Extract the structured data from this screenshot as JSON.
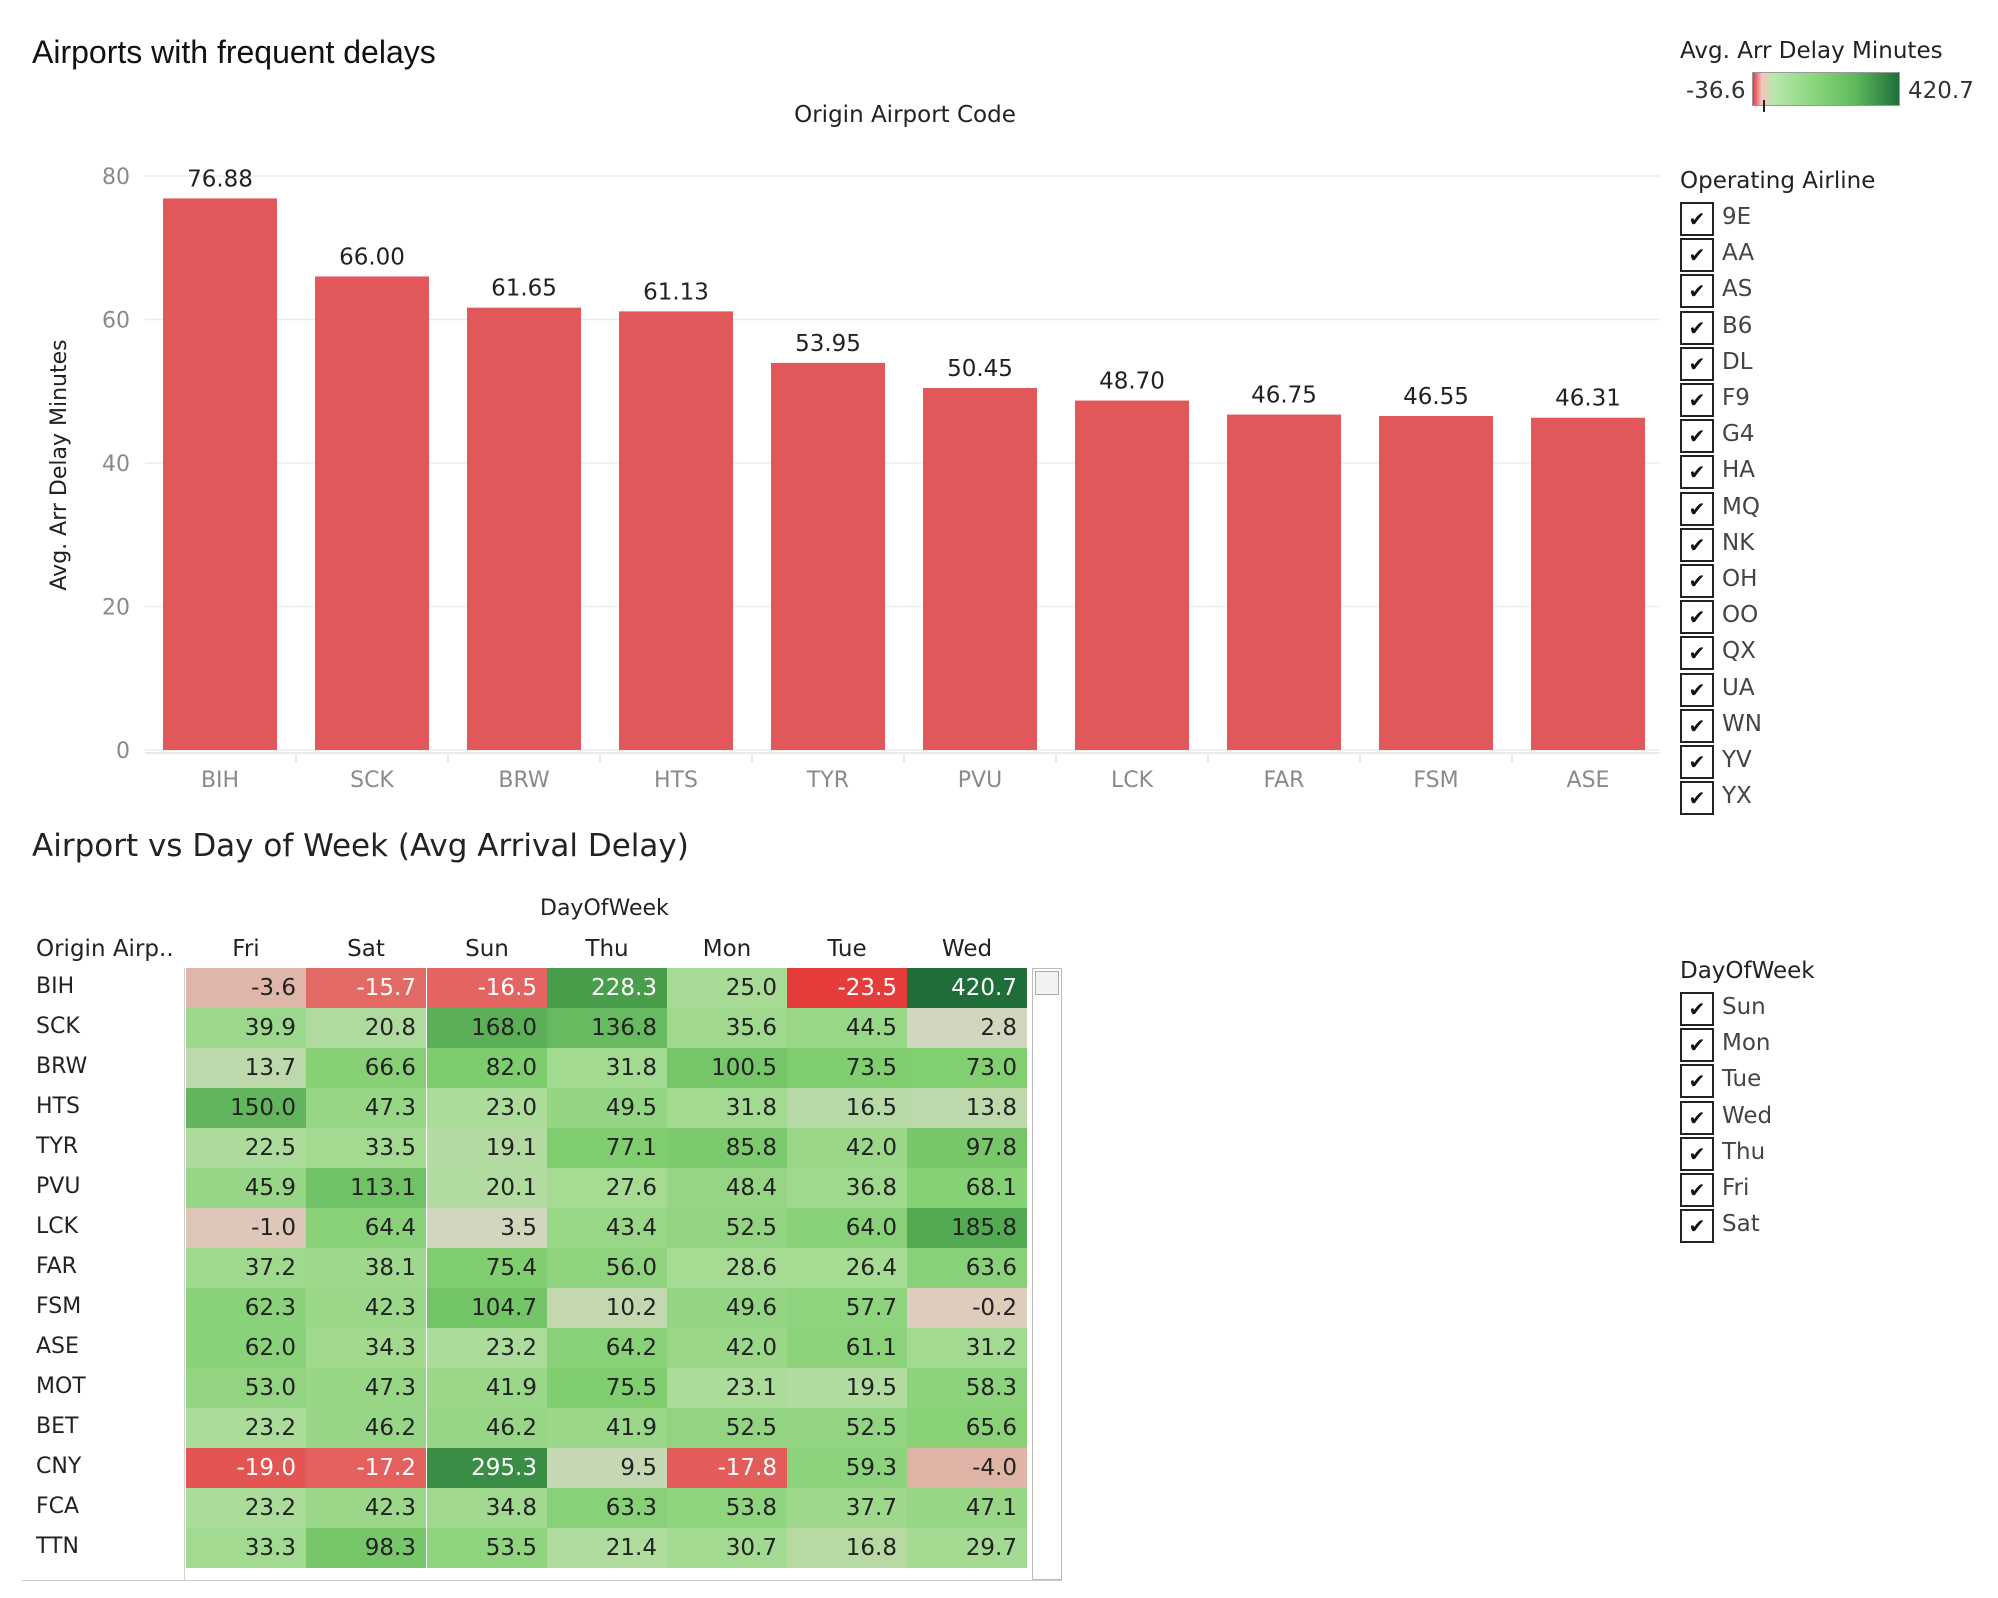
{
  "title": "Airports with frequent delays",
  "colors": {
    "bar": "#e1575a",
    "grid": "#ececec",
    "axis_text": "#8a8a8a"
  },
  "chart_data": [
    {
      "type": "bar",
      "title": "Airports with frequent delays",
      "top_axis_title": "Origin Airport Code",
      "ylabel": "Avg. Arr Delay Minutes",
      "xlabel": "",
      "ylim": [
        0,
        80
      ],
      "yticks": [
        0,
        20,
        40,
        60,
        80
      ],
      "grid": true,
      "categories": [
        "BIH",
        "SCK",
        "BRW",
        "HTS",
        "TYR",
        "PVU",
        "LCK",
        "FAR",
        "FSM",
        "ASE"
      ],
      "values": [
        76.88,
        66.0,
        61.65,
        61.13,
        53.95,
        50.45,
        48.7,
        46.75,
        46.55,
        46.31
      ],
      "value_labels": [
        "76.88",
        "66.00",
        "61.65",
        "61.13",
        "53.95",
        "50.45",
        "48.70",
        "46.75",
        "46.55",
        "46.31"
      ]
    },
    {
      "type": "heatmap",
      "title": "Airport vs Day of Week (Avg Arrival Delay)",
      "column_axis_title": "DayOfWeek",
      "row_header": "Origin Airp..",
      "columns": [
        "Fri",
        "Sat",
        "Sun",
        "Thu",
        "Mon",
        "Tue",
        "Wed"
      ],
      "rows": [
        "BIH",
        "SCK",
        "BRW",
        "HTS",
        "TYR",
        "PVU",
        "LCK",
        "FAR",
        "FSM",
        "ASE",
        "MOT",
        "BET",
        "CNY",
        "FCA",
        "TTN"
      ],
      "values": [
        [
          -3.6,
          -15.7,
          -16.5,
          228.3,
          25.0,
          -23.5,
          420.7
        ],
        [
          39.9,
          20.8,
          168.0,
          136.8,
          35.6,
          44.5,
          2.8
        ],
        [
          13.7,
          66.6,
          82.0,
          31.8,
          100.5,
          73.5,
          73.0
        ],
        [
          150.0,
          47.3,
          23.0,
          49.5,
          31.8,
          16.5,
          13.8
        ],
        [
          22.5,
          33.5,
          19.1,
          77.1,
          85.8,
          42.0,
          97.8
        ],
        [
          45.9,
          113.1,
          20.1,
          27.6,
          48.4,
          36.8,
          68.1
        ],
        [
          -1.0,
          64.4,
          3.5,
          43.4,
          52.5,
          64.0,
          185.8
        ],
        [
          37.2,
          38.1,
          75.4,
          56.0,
          28.6,
          26.4,
          63.6
        ],
        [
          62.3,
          42.3,
          104.7,
          10.2,
          49.6,
          57.7,
          -0.2
        ],
        [
          62.0,
          34.3,
          23.2,
          64.2,
          42.0,
          61.1,
          31.2
        ],
        [
          53.0,
          47.3,
          41.9,
          75.5,
          23.1,
          19.5,
          58.3
        ],
        [
          23.2,
          46.2,
          46.2,
          41.9,
          52.5,
          52.5,
          65.6
        ],
        [
          -19.0,
          -17.2,
          295.3,
          9.5,
          -17.8,
          59.3,
          -4.0
        ],
        [
          23.2,
          42.3,
          34.8,
          63.3,
          53.8,
          37.7,
          47.1
        ],
        [
          33.3,
          98.3,
          53.5,
          21.4,
          30.7,
          16.8,
          29.7
        ]
      ],
      "color_range": [
        -36.6,
        420.7
      ]
    }
  ],
  "legend": {
    "title": "Avg. Arr Delay Minutes",
    "min_label": "-36.6",
    "max_label": "420.7"
  },
  "airline_filter": {
    "title": "Operating Airline",
    "items": [
      "9E",
      "AA",
      "AS",
      "B6",
      "DL",
      "F9",
      "G4",
      "HA",
      "MQ",
      "NK",
      "OH",
      "OO",
      "QX",
      "UA",
      "WN",
      "YV",
      "YX"
    ]
  },
  "day_filter": {
    "title": "DayOfWeek",
    "items": [
      "Sun",
      "Mon",
      "Tue",
      "Wed",
      "Thu",
      "Fri",
      "Sat"
    ]
  },
  "check_glyph": "✔"
}
